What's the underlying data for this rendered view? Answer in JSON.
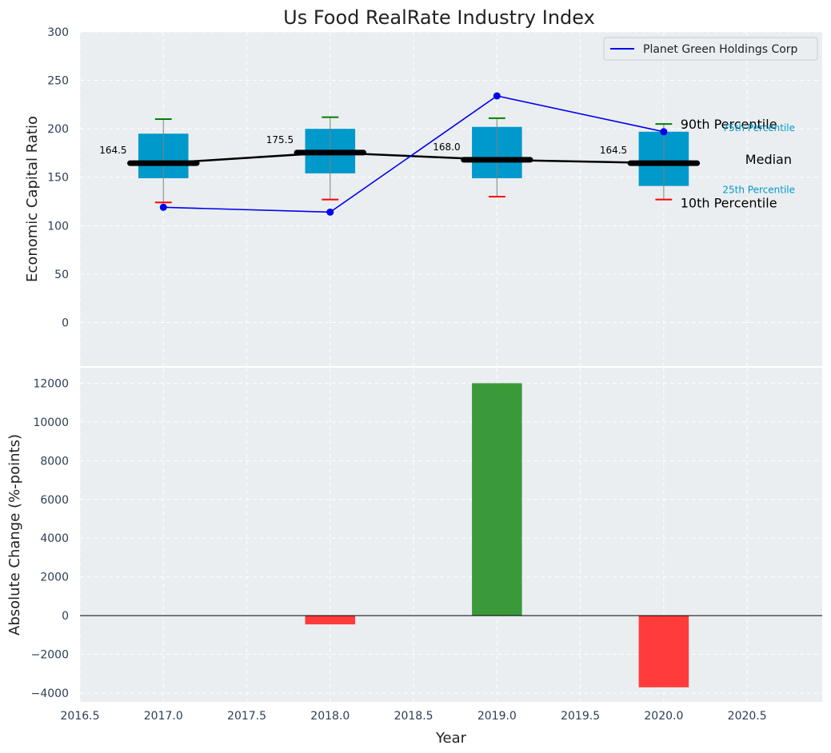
{
  "chart_data": [
    {
      "type": "box",
      "title": "Us Food RealRate Industry Index",
      "ylabel": "Economic Capital Ratio",
      "ylim": [
        -45,
        300
      ],
      "yticks": [
        0,
        50,
        100,
        150,
        200,
        250,
        300
      ],
      "xlim": [
        2016.5,
        2020.95
      ],
      "grid": true,
      "categories": [
        2017,
        2018,
        2019,
        2020
      ],
      "percentile_10": [
        124,
        127,
        130,
        127
      ],
      "percentile_25": [
        149,
        154,
        149,
        141
      ],
      "median": [
        164.5,
        175.5,
        168.0,
        164.5
      ],
      "percentile_75": [
        195,
        200,
        202,
        197
      ],
      "percentile_90": [
        210,
        212,
        211,
        205
      ],
      "median_labels": [
        "164.5",
        "175.5",
        "168.0",
        "164.5"
      ],
      "series": [
        {
          "name": "Planet Green Holdings Corp",
          "x": [
            2017,
            2018,
            2019,
            2020
          ],
          "values": [
            119,
            114,
            234,
            197
          ],
          "color": "#0000ee"
        }
      ],
      "legend": {
        "position": "top-right"
      },
      "annotations": {
        "p90": "90th Percentile",
        "p75": "75th Percentile",
        "median": "Median",
        "p25": "25th Percentile",
        "p10": "10th Percentile"
      },
      "colors": {
        "box": "#0099cc",
        "median_line": "#000000",
        "whisker_high": "#008000",
        "whisker_low": "#ff0000",
        "background": "#eaeef0"
      }
    },
    {
      "type": "bar",
      "ylabel": "Absolute Change (%-points)",
      "xlabel": "Year",
      "ylim": [
        -4450,
        12800
      ],
      "yticks": [
        -4000,
        -2000,
        0,
        2000,
        4000,
        6000,
        8000,
        10000,
        12000
      ],
      "xlim": [
        2016.5,
        2020.95
      ],
      "xticks": [
        "2016.5",
        "2017.0",
        "2017.5",
        "2018.0",
        "2018.5",
        "2019.0",
        "2019.5",
        "2020.0",
        "2020.5"
      ],
      "grid": true,
      "x": [
        2018,
        2019,
        2020
      ],
      "values": [
        -450,
        12000,
        -3700
      ],
      "colors": {
        "positive": "#3a9a3a",
        "negative": "#ff3b3b"
      }
    }
  ]
}
